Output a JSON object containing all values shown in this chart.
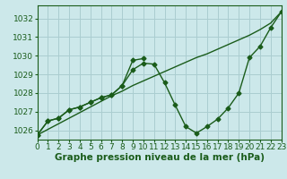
{
  "title": "Graphe pression niveau de la mer (hPa)",
  "bg_color": "#cce8ea",
  "grid_color": "#aacdd0",
  "line_color": "#1a5c1a",
  "xlim": [
    0,
    23
  ],
  "ylim": [
    1025.5,
    1032.7
  ],
  "yticks": [
    1026,
    1027,
    1028,
    1029,
    1030,
    1031,
    1032
  ],
  "xticks": [
    0,
    1,
    2,
    3,
    4,
    5,
    6,
    7,
    8,
    9,
    10,
    11,
    12,
    13,
    14,
    15,
    16,
    17,
    18,
    19,
    20,
    21,
    22,
    23
  ],
  "line1_x": [
    0,
    1,
    2,
    3,
    4,
    5,
    6,
    7,
    8,
    9,
    10,
    11,
    12,
    13,
    14,
    15,
    16,
    17,
    18,
    19,
    20,
    21,
    22,
    23
  ],
  "line1_y": [
    1025.75,
    1026.5,
    1026.65,
    1027.1,
    1027.25,
    1027.5,
    1027.75,
    1027.9,
    1028.4,
    1029.25,
    1029.6,
    1029.55,
    1028.55,
    1027.35,
    1026.2,
    1025.85,
    1026.2,
    1026.6,
    1027.2,
    1028.0,
    1029.9,
    1030.5,
    1031.5,
    1032.35
  ],
  "line2_x": [
    0,
    1,
    2,
    3,
    4,
    5,
    6,
    7,
    8,
    9,
    10
  ],
  "line2_y": [
    1025.75,
    1026.5,
    1026.65,
    1027.1,
    1027.25,
    1027.5,
    1027.75,
    1027.9,
    1028.4,
    1029.75,
    1029.85
  ],
  "line3_x": [
    0,
    1,
    2,
    3,
    4,
    5,
    6,
    7,
    8,
    9,
    10,
    11,
    12,
    13,
    14,
    15,
    16,
    17,
    18,
    19,
    20,
    21,
    22,
    23
  ],
  "line3_y": [
    1025.75,
    1026.05,
    1026.35,
    1026.65,
    1026.95,
    1027.25,
    1027.55,
    1027.85,
    1028.1,
    1028.4,
    1028.65,
    1028.9,
    1029.15,
    1029.4,
    1029.65,
    1029.9,
    1030.1,
    1030.35,
    1030.6,
    1030.85,
    1031.1,
    1031.4,
    1031.75,
    1032.35
  ],
  "tick_fontsize": 6.5,
  "label_fontsize": 7.5,
  "label_fontweight": "bold",
  "linewidth": 1.0,
  "markersize": 2.5
}
